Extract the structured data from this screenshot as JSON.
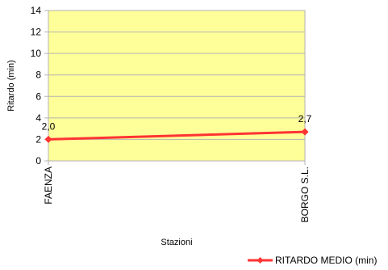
{
  "colors": {
    "plot_background": "#ffff99",
    "plot_border": "#b3b3b3",
    "gridline": "#b3b3b3",
    "series_line": "#ff3333"
  },
  "chart_data": {
    "type": "line",
    "categories": [
      "FAENZA",
      "BORGO S.L."
    ],
    "series": [
      {
        "name": "RITARDO MEDIO (min)",
        "values": [
          2.0,
          2.7
        ],
        "labels": [
          "2,0",
          "2,7"
        ]
      }
    ],
    "xlabel": "Stazioni",
    "ylabel": "Ritardo (min)",
    "ylim": [
      0,
      14
    ],
    "yticks": [
      0,
      2,
      4,
      6,
      8,
      10,
      12,
      14
    ],
    "grid": true,
    "legend_position": "bottom-right",
    "marker": "diamond"
  }
}
